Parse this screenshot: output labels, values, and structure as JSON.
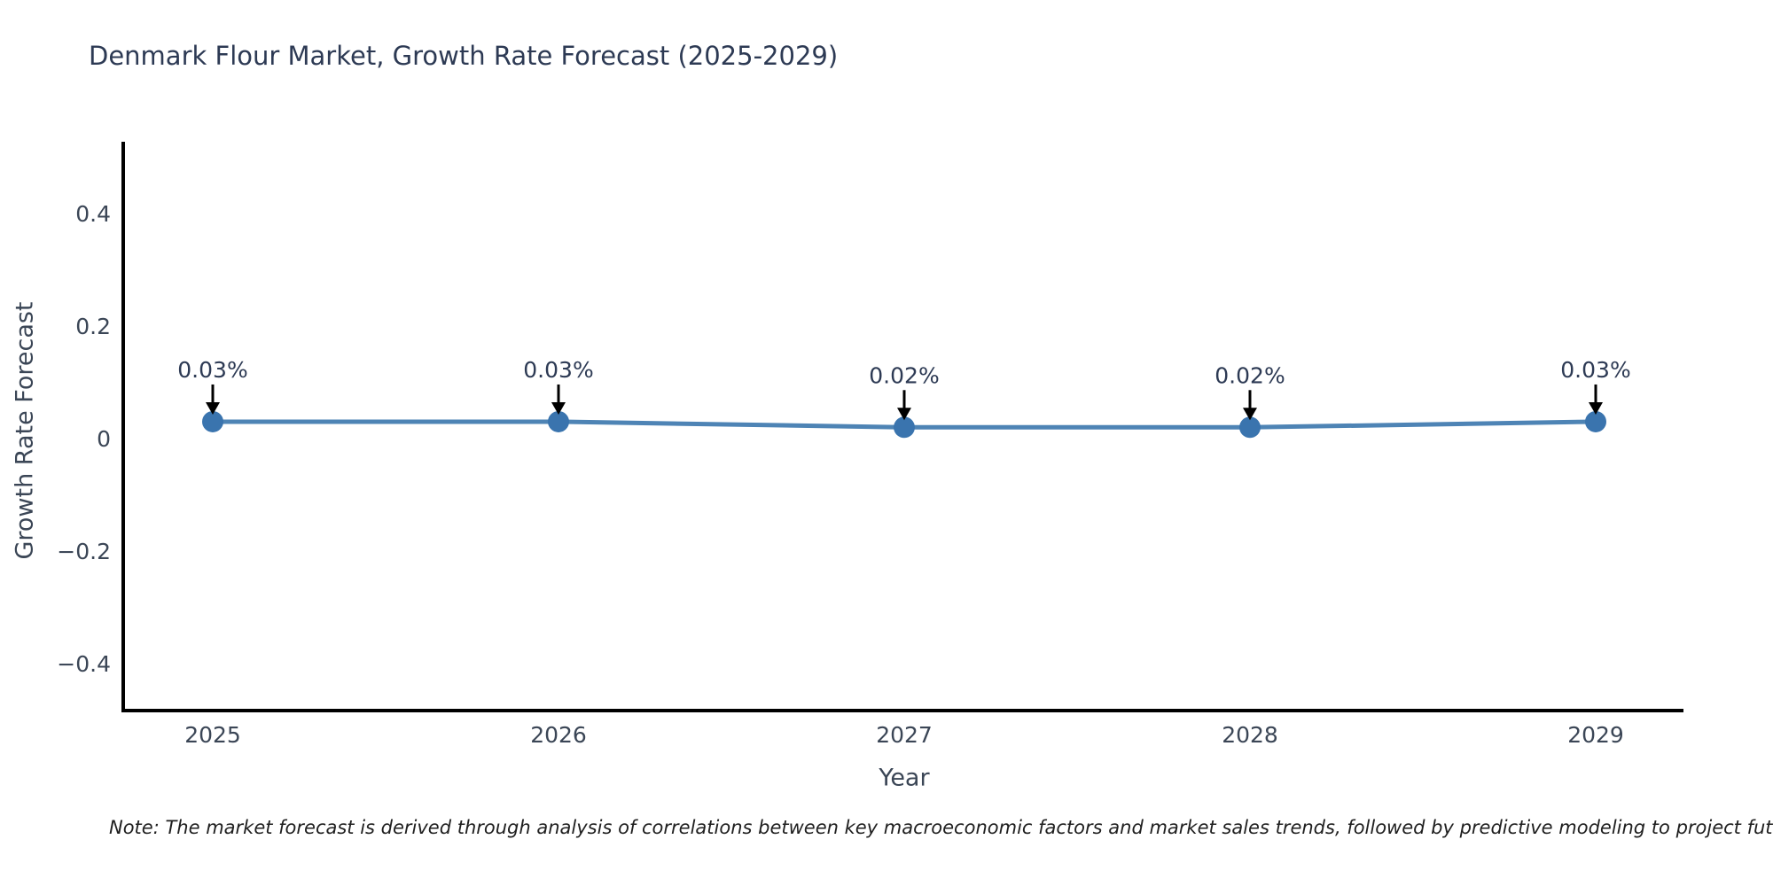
{
  "title": "Denmark Flour Market, Growth Rate Forecast (2025-2029)",
  "note": "Note: The market forecast is derived through analysis of correlations between key macroeconomic factors and market sales trends, followed by predictive modeling to project future sales.",
  "chart_data": {
    "type": "line",
    "title": "Denmark Flour Market, Growth Rate Forecast (2025-2029)",
    "xlabel": "Year",
    "ylabel": "Growth Rate Forecast",
    "x": [
      2025,
      2026,
      2027,
      2028,
      2029
    ],
    "xtick_labels": [
      "2025",
      "2026",
      "2027",
      "2028",
      "2029"
    ],
    "series": [
      {
        "name": "Growth Rate Forecast",
        "values": [
          0.03,
          0.03,
          0.02,
          0.02,
          0.03
        ]
      }
    ],
    "point_labels": [
      "0.03%",
      "0.03%",
      "0.02%",
      "0.02%",
      "0.03%"
    ],
    "yticks": [
      0.4,
      0.2,
      0,
      -0.2,
      -0.4
    ],
    "ytick_labels": [
      "0.4",
      "0.2",
      "0",
      "−0.2",
      "−0.4"
    ],
    "ylim": [
      -0.48,
      0.53
    ],
    "grid": false,
    "legend": "none",
    "annotation_style": "black-down-arrow-to-point",
    "colors": {
      "line": "#4e84b5",
      "marker": "#3a74ae",
      "arrow": "#000000",
      "spine": "#000000",
      "title_text": "#2d3a54",
      "tick_text": "#3b4656"
    }
  }
}
